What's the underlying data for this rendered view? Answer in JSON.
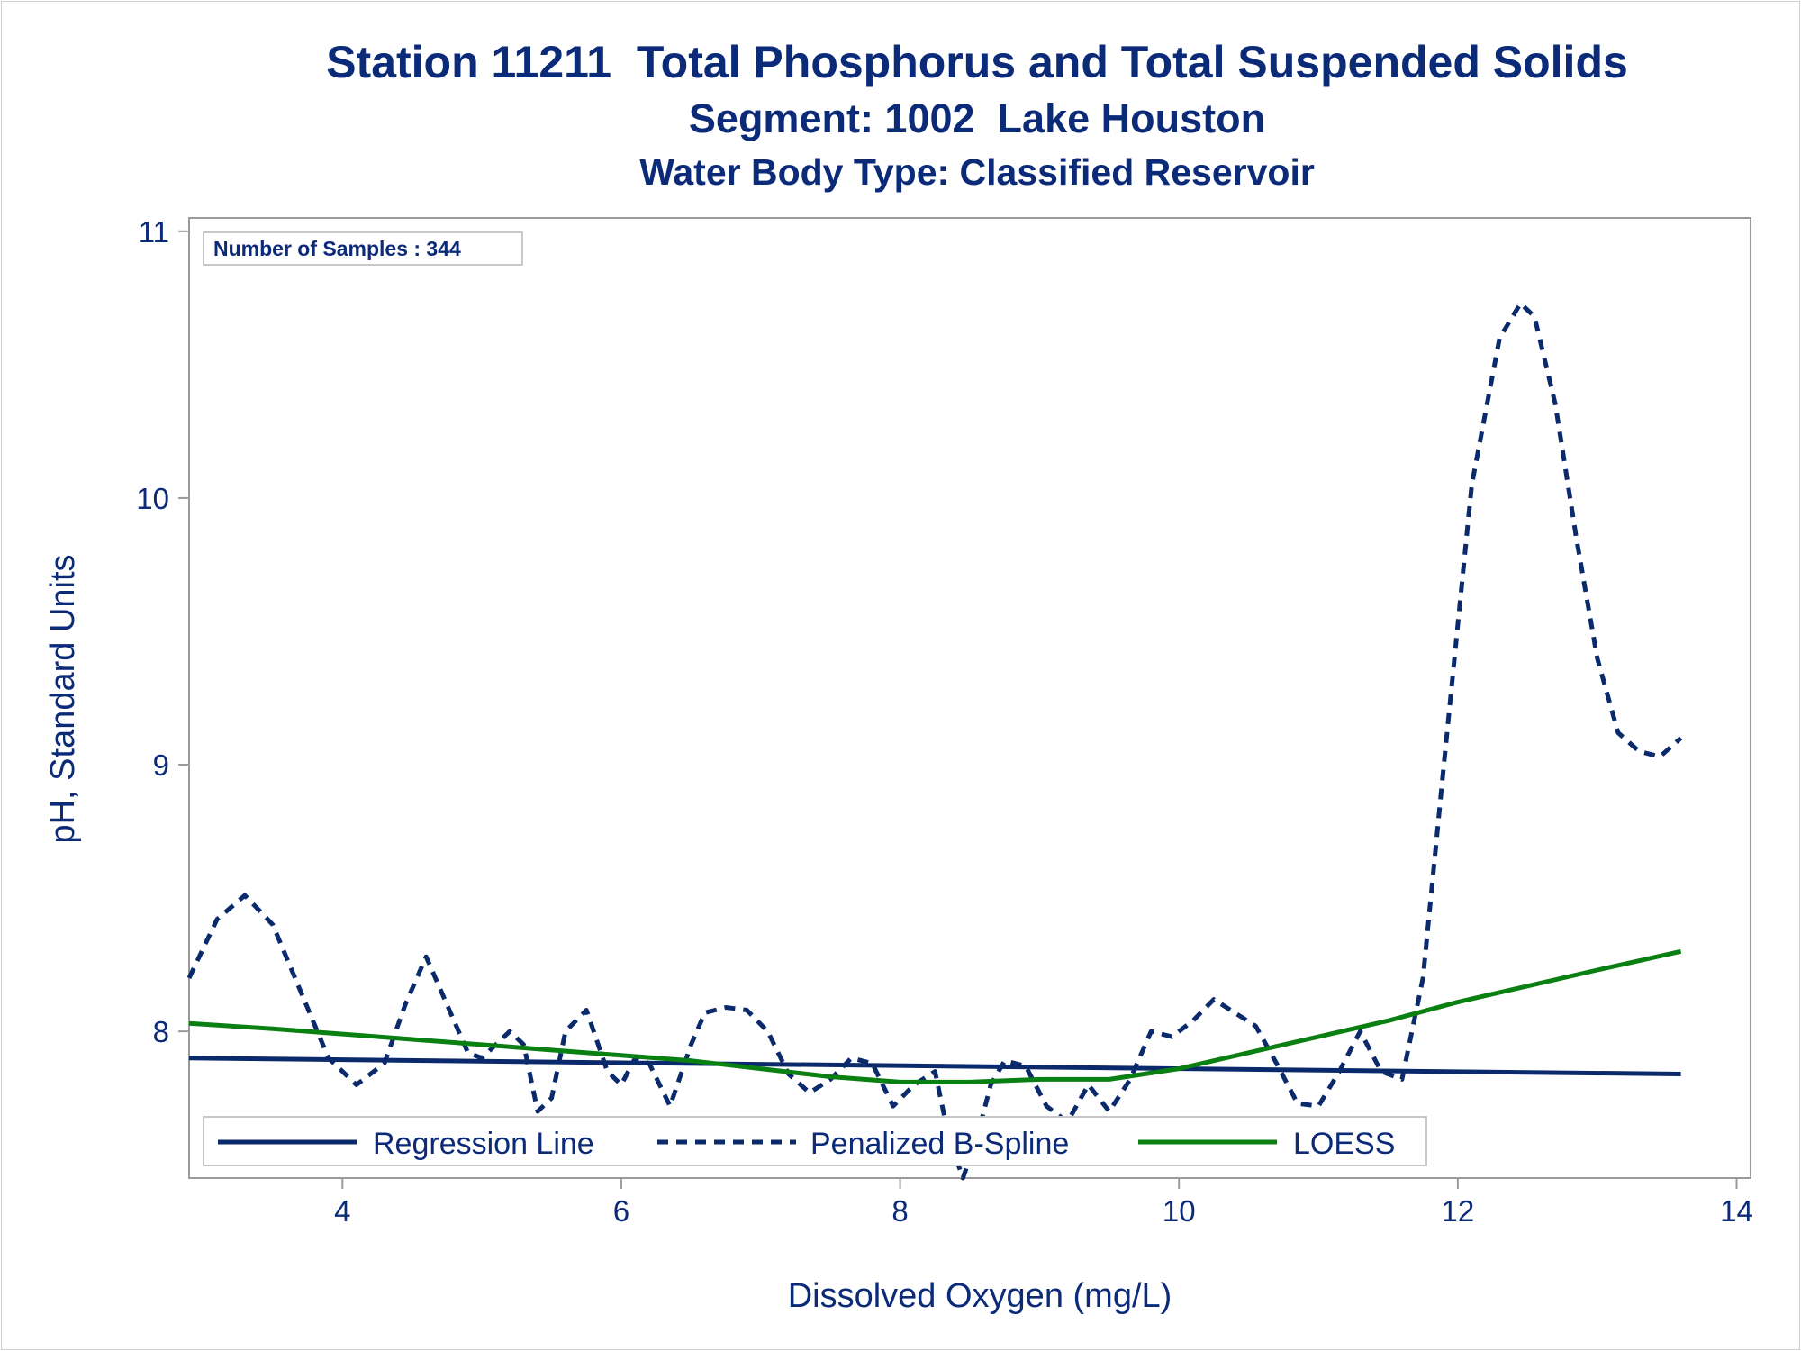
{
  "titles": {
    "line1": "Station 11211  Total Phosphorus and Total Suspended Solids",
    "line2": "Segment: 1002  Lake Houston",
    "line3": "Water Body Type: Classified Reservoir"
  },
  "inset": {
    "samples_label": "Number of Samples : 344"
  },
  "colors": {
    "text": "#0b2a78",
    "regression": "#0b2a6b",
    "spline": "#0b2a6b",
    "loess": "#0a7f12",
    "frame": "#9a9a9a"
  },
  "chart_data": {
    "type": "line",
    "title": "Station 11211  Total Phosphorus and Total Suspended Solids",
    "xlabel": "Dissolved Oxygen (mg/L)",
    "ylabel": "pH, Standard Units",
    "xlim": [
      2.9,
      14.1
    ],
    "ylim": [
      7.45,
      11.05
    ],
    "xticks": [
      4,
      6,
      8,
      10,
      12,
      14
    ],
    "yticks": [
      8,
      9,
      10,
      11
    ],
    "grid": false,
    "legend_position": "bottom-inside",
    "series": [
      {
        "name": "Regression Line",
        "style": "solid",
        "x": [
          2.9,
          13.6
        ],
        "y": [
          7.9,
          7.84
        ]
      },
      {
        "name": "Penalized B-Spline",
        "style": "dashed",
        "x": [
          2.9,
          3.1,
          3.3,
          3.5,
          3.7,
          3.9,
          4.1,
          4.3,
          4.45,
          4.6,
          4.75,
          4.9,
          5.0,
          5.1,
          5.2,
          5.3,
          5.4,
          5.5,
          5.6,
          5.75,
          5.9,
          6.0,
          6.1,
          6.2,
          6.35,
          6.5,
          6.6,
          6.75,
          6.9,
          7.05,
          7.2,
          7.35,
          7.5,
          7.65,
          7.8,
          7.95,
          8.1,
          8.25,
          8.35,
          8.45,
          8.55,
          8.65,
          8.75,
          8.9,
          9.05,
          9.2,
          9.35,
          9.5,
          9.65,
          9.8,
          9.95,
          10.1,
          10.25,
          10.4,
          10.55,
          10.7,
          10.85,
          11.0,
          11.15,
          11.3,
          11.45,
          11.6,
          11.75,
          11.9,
          12.1,
          12.3,
          12.45,
          12.55,
          12.7,
          12.85,
          13.0,
          13.15,
          13.3,
          13.45,
          13.6
        ],
        "y": [
          8.2,
          8.42,
          8.51,
          8.4,
          8.15,
          7.9,
          7.8,
          7.88,
          8.1,
          8.28,
          8.1,
          7.92,
          7.9,
          7.95,
          8.0,
          7.95,
          7.7,
          7.75,
          8.0,
          8.08,
          7.85,
          7.8,
          7.9,
          7.88,
          7.72,
          7.95,
          8.07,
          8.09,
          8.08,
          8.0,
          7.84,
          7.77,
          7.82,
          7.9,
          7.88,
          7.72,
          7.8,
          7.85,
          7.6,
          7.45,
          7.6,
          7.8,
          7.89,
          7.87,
          7.72,
          7.66,
          7.8,
          7.7,
          7.82,
          8.0,
          7.98,
          8.04,
          8.12,
          8.07,
          8.02,
          7.88,
          7.73,
          7.72,
          7.85,
          8.0,
          7.85,
          7.82,
          8.2,
          9.0,
          10.05,
          10.6,
          10.73,
          10.68,
          10.35,
          9.85,
          9.4,
          9.12,
          9.05,
          9.03,
          9.1
        ]
      },
      {
        "name": "LOESS",
        "style": "solid",
        "x": [
          2.9,
          3.5,
          4.0,
          4.5,
          5.0,
          5.5,
          6.0,
          6.5,
          7.0,
          7.5,
          8.0,
          8.5,
          9.0,
          9.5,
          10.0,
          10.5,
          11.0,
          11.5,
          12.0,
          12.5,
          13.0,
          13.6
        ],
        "y": [
          8.03,
          8.01,
          7.99,
          7.97,
          7.95,
          7.93,
          7.91,
          7.89,
          7.86,
          7.83,
          7.81,
          7.81,
          7.82,
          7.82,
          7.86,
          7.92,
          7.98,
          8.04,
          8.11,
          8.17,
          8.23,
          8.3
        ]
      }
    ]
  }
}
